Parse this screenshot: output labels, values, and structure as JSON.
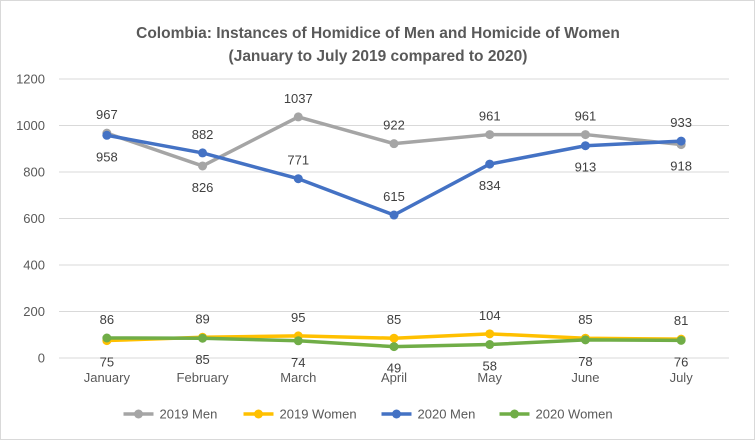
{
  "chart_data": {
    "type": "line",
    "title": "Colombia: Instances of Homidice of Men and Homicide of Women",
    "subtitle": "(January to July 2019 compared to 2020)",
    "categories": [
      "January",
      "February",
      "March",
      "April",
      "May",
      "June",
      "July"
    ],
    "ylim": [
      0,
      1200
    ],
    "yticks": [
      0,
      200,
      400,
      600,
      800,
      1000,
      1200
    ],
    "grid": true,
    "legend_position": "bottom",
    "series": [
      {
        "name": "2019 Men",
        "color": "#a5a5a5",
        "values": [
          967,
          826,
          1037,
          922,
          961,
          961,
          918
        ],
        "label_pos": [
          "above",
          "below",
          "above",
          "above",
          "above",
          "above",
          "below"
        ]
      },
      {
        "name": "2019 Women",
        "color": "#ffc000",
        "values": [
          75,
          89,
          95,
          85,
          104,
          85,
          81
        ],
        "label_pos": [
          "below",
          "above",
          "above",
          "above",
          "above",
          "above",
          "above"
        ]
      },
      {
        "name": "2020 Men",
        "color": "#4472c4",
        "values": [
          958,
          882,
          771,
          615,
          834,
          913,
          933
        ],
        "label_pos": [
          "below",
          "above",
          "above",
          "above",
          "below",
          "below",
          "above"
        ]
      },
      {
        "name": "2020 Women",
        "color": "#70ad47",
        "values": [
          86,
          85,
          74,
          49,
          58,
          78,
          76
        ],
        "label_pos": [
          "above",
          "below",
          "below",
          "below",
          "below",
          "below",
          "below"
        ]
      }
    ]
  }
}
